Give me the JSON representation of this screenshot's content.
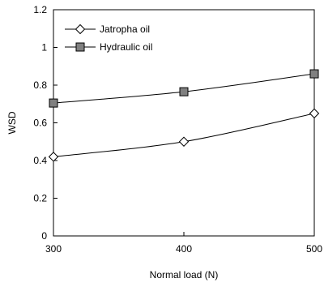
{
  "chart_data": {
    "type": "line",
    "title": "",
    "xlabel": "Normal load (N)",
    "ylabel": "WSD",
    "x": [
      300,
      400,
      500
    ],
    "xlim": [
      300,
      500
    ],
    "xticks": [
      300,
      400,
      500
    ],
    "ylim": [
      0,
      1.2
    ],
    "yticks": [
      0,
      0.2,
      0.4,
      0.6,
      0.8,
      1,
      1.2
    ],
    "grid": false,
    "legend_position": "top-left",
    "series": [
      {
        "name": "Jatropha oil",
        "values": [
          0.42,
          0.5,
          0.65
        ],
        "marker": "diamond-open",
        "color": "#000000"
      },
      {
        "name": "Hydraulic oil",
        "values": [
          0.705,
          0.765,
          0.86
        ],
        "marker": "square-filled",
        "color": "#808080"
      }
    ]
  }
}
